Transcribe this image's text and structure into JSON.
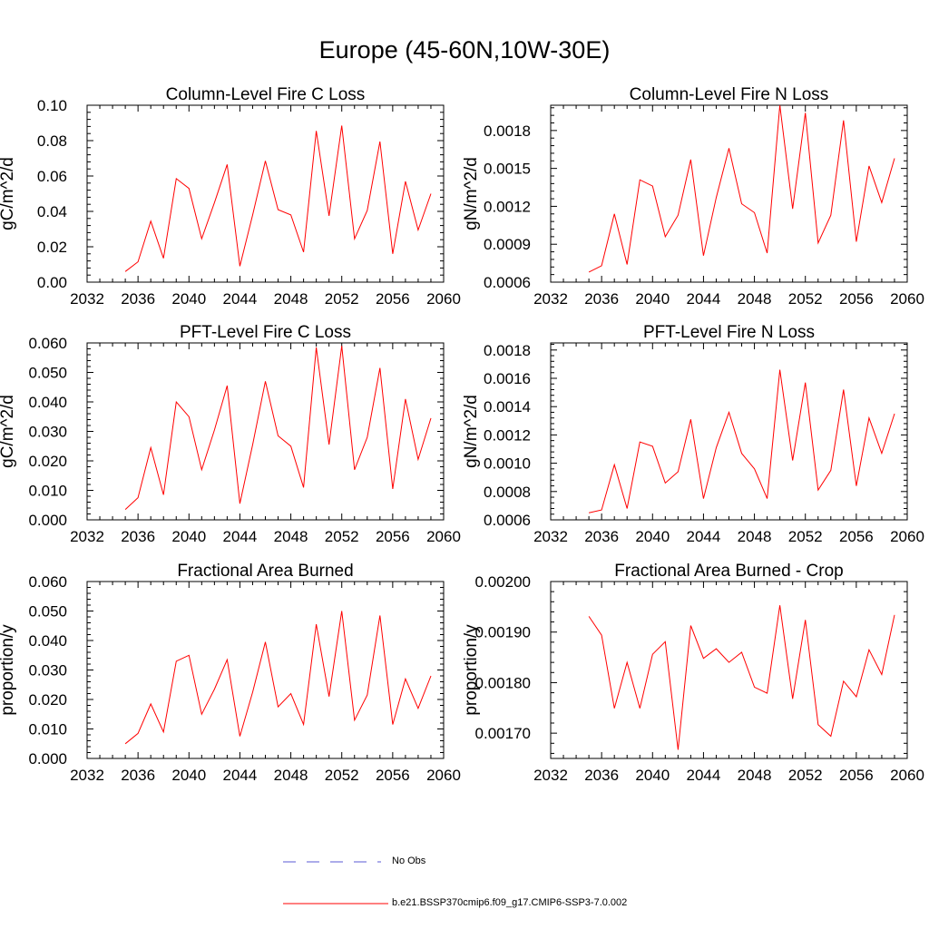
{
  "figure": {
    "title": "Europe (45-60N,10W-30E)"
  },
  "legend": {
    "obs_label": "No Obs",
    "model_label": "b.e21.BSSP370cmip6.f09_g17.CMIP6-SSP3-7.0.002",
    "obs_color": "#5a5ad6",
    "model_color": "#ff0000"
  },
  "chart_data": [
    {
      "type": "line",
      "title": "Column-Level Fire C Loss",
      "ylabel": "gC/m^2/d",
      "xlim": [
        2032,
        2060
      ],
      "ylim": [
        0.0,
        0.1
      ],
      "x_ticks": [
        "2032",
        "2036",
        "2040",
        "2044",
        "2048",
        "2052",
        "2056",
        "2060"
      ],
      "y_ticks": [
        "0.00",
        "0.02",
        "0.04",
        "0.06",
        "0.08",
        "0.10"
      ],
      "series": [
        {
          "color": "#ff0000",
          "x": [
            2035,
            2036,
            2037,
            2038,
            2039,
            2040,
            2041,
            2042,
            2043,
            2044,
            2045,
            2046,
            2047,
            2048,
            2049,
            2050,
            2051,
            2052,
            2053,
            2054,
            2055,
            2056,
            2057,
            2058,
            2059
          ],
          "y": [
            0.006,
            0.0115,
            0.0345,
            0.0135,
            0.0585,
            0.053,
            0.0245,
            0.045,
            0.0665,
            0.009,
            0.038,
            0.0685,
            0.041,
            0.038,
            0.017,
            0.0855,
            0.0375,
            0.0885,
            0.0245,
            0.0405,
            0.0795,
            0.016,
            0.057,
            0.0295,
            0.05
          ]
        }
      ]
    },
    {
      "type": "line",
      "title": "Column-Level Fire N Loss",
      "ylabel": "gN/m^2/d",
      "xlim": [
        2032,
        2060
      ],
      "ylim": [
        0.0006,
        0.002
      ],
      "x_ticks": [
        "2032",
        "2036",
        "2040",
        "2044",
        "2048",
        "2052",
        "2056",
        "2060"
      ],
      "y_ticks": [
        "0.0006",
        "0.0009",
        "0.0012",
        "0.0015",
        "0.0018"
      ],
      "series": [
        {
          "color": "#ff0000",
          "x": [
            2035,
            2036,
            2037,
            2038,
            2039,
            2040,
            2041,
            2042,
            2043,
            2044,
            2045,
            2046,
            2047,
            2048,
            2049,
            2050,
            2051,
            2052,
            2053,
            2054,
            2055,
            2056,
            2057,
            2058,
            2059
          ],
          "y": [
            0.00068,
            0.00073,
            0.00114,
            0.00074,
            0.00141,
            0.00136,
            0.00096,
            0.00113,
            0.00157,
            0.00081,
            0.00127,
            0.00166,
            0.00122,
            0.00115,
            0.00083,
            0.002,
            0.00118,
            0.00194,
            0.00091,
            0.00113,
            0.00188,
            0.00092,
            0.00152,
            0.00123,
            0.00158
          ]
        }
      ]
    },
    {
      "type": "line",
      "title": "PFT-Level Fire C Loss",
      "ylabel": "gC/m^2/d",
      "xlim": [
        2032,
        2060
      ],
      "ylim": [
        0.0,
        0.06
      ],
      "x_ticks": [
        "2032",
        "2036",
        "2040",
        "2044",
        "2048",
        "2052",
        "2056",
        "2060"
      ],
      "y_ticks": [
        "0.000",
        "0.010",
        "0.020",
        "0.030",
        "0.040",
        "0.050",
        "0.060"
      ],
      "series": [
        {
          "color": "#ff0000",
          "x": [
            2035,
            2036,
            2037,
            2038,
            2039,
            2040,
            2041,
            2042,
            2043,
            2044,
            2045,
            2046,
            2047,
            2048,
            2049,
            2050,
            2051,
            2052,
            2053,
            2054,
            2055,
            2056,
            2057,
            2058,
            2059
          ],
          "y": [
            0.0035,
            0.0075,
            0.0245,
            0.0085,
            0.04,
            0.035,
            0.017,
            0.0305,
            0.0455,
            0.0055,
            0.0255,
            0.047,
            0.0285,
            0.025,
            0.011,
            0.0585,
            0.0255,
            0.059,
            0.017,
            0.028,
            0.0515,
            0.0105,
            0.041,
            0.0205,
            0.0345
          ]
        }
      ]
    },
    {
      "type": "line",
      "title": "PFT-Level Fire N Loss",
      "ylabel": "gN/m^2/d",
      "xlim": [
        2032,
        2060
      ],
      "ylim": [
        0.0006,
        0.00185
      ],
      "x_ticks": [
        "2032",
        "2036",
        "2040",
        "2044",
        "2048",
        "2052",
        "2056",
        "2060"
      ],
      "y_ticks": [
        "0.0006",
        "0.0008",
        "0.0010",
        "0.0012",
        "0.0014",
        "0.0016",
        "0.0018"
      ],
      "series": [
        {
          "color": "#ff0000",
          "x": [
            2035,
            2036,
            2037,
            2038,
            2039,
            2040,
            2041,
            2042,
            2043,
            2044,
            2045,
            2046,
            2047,
            2048,
            2049,
            2050,
            2051,
            2052,
            2053,
            2054,
            2055,
            2056,
            2057,
            2058,
            2059
          ],
          "y": [
            0.00065,
            0.00067,
            0.00099,
            0.00068,
            0.00115,
            0.00112,
            0.00086,
            0.00094,
            0.00131,
            0.00075,
            0.00111,
            0.00136,
            0.00107,
            0.00096,
            0.00075,
            0.00166,
            0.00102,
            0.00157,
            0.00081,
            0.00095,
            0.00152,
            0.00084,
            0.00132,
            0.00107,
            0.00135
          ]
        }
      ]
    },
    {
      "type": "line",
      "title": "Fractional Area Burned",
      "ylabel": "proportion/y",
      "xlim": [
        2032,
        2060
      ],
      "ylim": [
        0.0,
        0.06
      ],
      "x_ticks": [
        "2032",
        "2036",
        "2040",
        "2044",
        "2048",
        "2052",
        "2056",
        "2060"
      ],
      "y_ticks": [
        "0.000",
        "0.010",
        "0.020",
        "0.030",
        "0.040",
        "0.050",
        "0.060"
      ],
      "series": [
        {
          "color": "#ff0000",
          "x": [
            2035,
            2036,
            2037,
            2038,
            2039,
            2040,
            2041,
            2042,
            2043,
            2044,
            2045,
            2046,
            2047,
            2048,
            2049,
            2050,
            2051,
            2052,
            2053,
            2054,
            2055,
            2056,
            2057,
            2058,
            2059
          ],
          "y": [
            0.005,
            0.0085,
            0.0185,
            0.009,
            0.033,
            0.035,
            0.015,
            0.0235,
            0.0335,
            0.0075,
            0.0225,
            0.0395,
            0.0175,
            0.022,
            0.0115,
            0.0455,
            0.021,
            0.05,
            0.013,
            0.0215,
            0.0485,
            0.0115,
            0.027,
            0.017,
            0.028
          ]
        }
      ]
    },
    {
      "type": "line",
      "title": "Fractional Area Burned - Crop",
      "ylabel": "proportion/y",
      "xlim": [
        2032,
        2060
      ],
      "ylim": [
        0.00165,
        0.002
      ],
      "x_ticks": [
        "2032",
        "2036",
        "2040",
        "2044",
        "2048",
        "2052",
        "2056",
        "2060"
      ],
      "y_ticks": [
        "0.00170",
        "0.00180",
        "0.00190",
        "0.00200"
      ],
      "series": [
        {
          "color": "#ff0000",
          "x": [
            2035,
            2036,
            2037,
            2038,
            2039,
            2040,
            2041,
            2042,
            2043,
            2044,
            2045,
            2046,
            2047,
            2048,
            2049,
            2050,
            2051,
            2052,
            2053,
            2054,
            2055,
            2056,
            2057,
            2058,
            2059
          ],
          "y": [
            0.001931,
            0.001894,
            0.001749,
            0.00184,
            0.001749,
            0.001856,
            0.001881,
            0.001667,
            0.001913,
            0.001848,
            0.001867,
            0.00184,
            0.00186,
            0.001791,
            0.001779,
            0.001953,
            0.001768,
            0.001924,
            0.001717,
            0.001694,
            0.001803,
            0.001772,
            0.001865,
            0.001816,
            0.001934
          ]
        }
      ]
    }
  ]
}
